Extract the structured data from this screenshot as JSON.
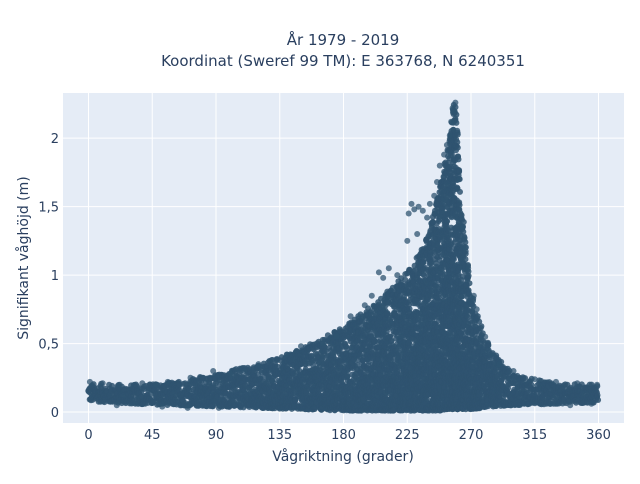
{
  "chart_data": {
    "type": "scatter",
    "title": "År 1979 - 2019",
    "subtitle": "Koordinat (Sweref 99 TM): E 363768, N 6240351",
    "xlabel": "Vågriktning (grader)",
    "ylabel": "Signifikant våghöjd (m)",
    "xlim": [
      -18,
      378
    ],
    "ylim": [
      -0.08,
      2.33
    ],
    "x_ticks": [
      0,
      45,
      90,
      135,
      180,
      225,
      270,
      315,
      360
    ],
    "x_tick_labels": [
      "0",
      "45",
      "90",
      "135",
      "180",
      "225",
      "270",
      "315",
      "360"
    ],
    "y_ticks": [
      0,
      0.5,
      1,
      1.5,
      2
    ],
    "y_tick_labels": [
      "0",
      "0,5",
      "1",
      "1,5",
      "2"
    ],
    "grid": true,
    "legend": "none",
    "marker_color": "#2f5470",
    "background_color": "#e5ecf6",
    "envelope": {
      "description_of_data": "upper envelope of wave height by direction",
      "x": [
        0,
        30,
        60,
        90,
        120,
        150,
        180,
        200,
        215,
        230,
        240,
        248,
        252,
        256,
        258,
        260,
        262,
        265,
        270,
        278,
        285,
        300,
        330,
        360
      ],
      "y_max": [
        0.21,
        0.2,
        0.22,
        0.28,
        0.35,
        0.46,
        0.62,
        0.78,
        0.92,
        1.1,
        1.3,
        1.65,
        1.85,
        2.1,
        2.26,
        2.25,
        1.65,
        1.35,
        0.9,
        0.6,
        0.45,
        0.27,
        0.21,
        0.2
      ],
      "y_min": [
        0.08,
        0.06,
        0.05,
        0.04,
        0.03,
        0.02,
        0.01,
        0.01,
        0.01,
        0.01,
        0.01,
        0.01,
        0.02,
        0.02,
        0.02,
        0.02,
        0.02,
        0.02,
        0.02,
        0.03,
        0.04,
        0.05,
        0.06,
        0.07
      ]
    },
    "outliers": [
      {
        "x": 241,
        "y": 1.52
      },
      {
        "x": 244,
        "y": 1.58
      },
      {
        "x": 246,
        "y": 1.68
      },
      {
        "x": 248,
        "y": 1.8
      },
      {
        "x": 251,
        "y": 1.88
      },
      {
        "x": 253,
        "y": 1.95
      },
      {
        "x": 255,
        "y": 2.02
      },
      {
        "x": 256,
        "y": 2.12
      },
      {
        "x": 257,
        "y": 2.22
      },
      {
        "x": 259,
        "y": 2.26
      },
      {
        "x": 258,
        "y": 2.2
      },
      {
        "x": 262,
        "y": 1.7
      },
      {
        "x": 239,
        "y": 1.42
      },
      {
        "x": 236,
        "y": 1.47
      },
      {
        "x": 233,
        "y": 1.5
      },
      {
        "x": 230,
        "y": 1.48
      },
      {
        "x": 226,
        "y": 1.45
      },
      {
        "x": 228,
        "y": 1.52
      },
      {
        "x": 232,
        "y": 1.3
      },
      {
        "x": 225,
        "y": 1.25
      },
      {
        "x": 218,
        "y": 1.0
      },
      {
        "x": 212,
        "y": 1.05
      },
      {
        "x": 208,
        "y": 0.98
      },
      {
        "x": 205,
        "y": 1.02
      },
      {
        "x": 200,
        "y": 0.85
      },
      {
        "x": 195,
        "y": 0.78
      },
      {
        "x": 185,
        "y": 0.7
      },
      {
        "x": 175,
        "y": 0.55
      },
      {
        "x": 165,
        "y": 0.5
      },
      {
        "x": 150,
        "y": 0.48
      },
      {
        "x": 140,
        "y": 0.42
      },
      {
        "x": 130,
        "y": 0.38
      },
      {
        "x": 120,
        "y": 0.35
      },
      {
        "x": 110,
        "y": 0.3
      },
      {
        "x": 100,
        "y": 0.28
      },
      {
        "x": 88,
        "y": 0.3
      },
      {
        "x": 72,
        "y": 0.25
      },
      {
        "x": 56,
        "y": 0.22
      },
      {
        "x": 48,
        "y": 0.2
      },
      {
        "x": 38,
        "y": 0.21
      },
      {
        "x": 22,
        "y": 0.2
      },
      {
        "x": 10,
        "y": 0.21
      },
      {
        "x": 1,
        "y": 0.22
      },
      {
        "x": 280,
        "y": 0.55
      },
      {
        "x": 285,
        "y": 0.42
      },
      {
        "x": 290,
        "y": 0.35
      },
      {
        "x": 300,
        "y": 0.3
      },
      {
        "x": 315,
        "y": 0.24
      },
      {
        "x": 330,
        "y": 0.22
      },
      {
        "x": 345,
        "y": 0.21
      },
      {
        "x": 359,
        "y": 0.2
      },
      {
        "x": 274,
        "y": 0.75
      },
      {
        "x": 272,
        "y": 0.85
      },
      {
        "x": 268,
        "y": 1.05
      },
      {
        "x": 266,
        "y": 1.2
      },
      {
        "x": 264,
        "y": 1.35
      },
      {
        "x": 20,
        "y": 0.05
      },
      {
        "x": 52,
        "y": 0.04
      },
      {
        "x": 70,
        "y": 0.03
      },
      {
        "x": 92,
        "y": 0.03
      },
      {
        "x": 340,
        "y": 0.05
      },
      {
        "x": 355,
        "y": 0.06
      }
    ]
  }
}
